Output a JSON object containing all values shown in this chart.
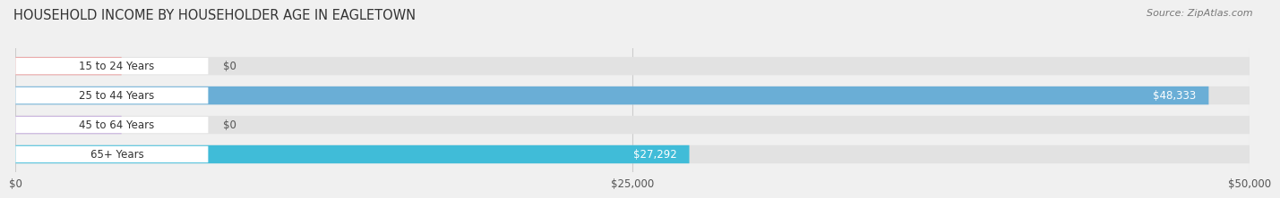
{
  "title": "HOUSEHOLD INCOME BY HOUSEHOLDER AGE IN EAGLETOWN",
  "source": "Source: ZipAtlas.com",
  "categories": [
    "15 to 24 Years",
    "25 to 44 Years",
    "45 to 64 Years",
    "65+ Years"
  ],
  "values": [
    0,
    48333,
    0,
    27292
  ],
  "max_value": 50000,
  "bar_colors": [
    "#e8a0a0",
    "#6aaed6",
    "#c0a8d8",
    "#40bcd8"
  ],
  "bg_color": "#f0f0f0",
  "bar_bg_color": "#e2e2e2",
  "label_pill_color": "#ffffff",
  "label_text_color": "#333333",
  "value_label_color_inside": "#ffffff",
  "value_label_color_outside": "#555555",
  "tick_labels": [
    "$0",
    "$25,000",
    "$50,000"
  ],
  "tick_values": [
    0,
    25000,
    50000
  ],
  "title_fontsize": 10.5,
  "source_fontsize": 8,
  "bar_label_fontsize": 8.5,
  "value_label_fontsize": 8.5,
  "xtick_fontsize": 8.5,
  "bar_height": 0.62,
  "n_bars": 4
}
